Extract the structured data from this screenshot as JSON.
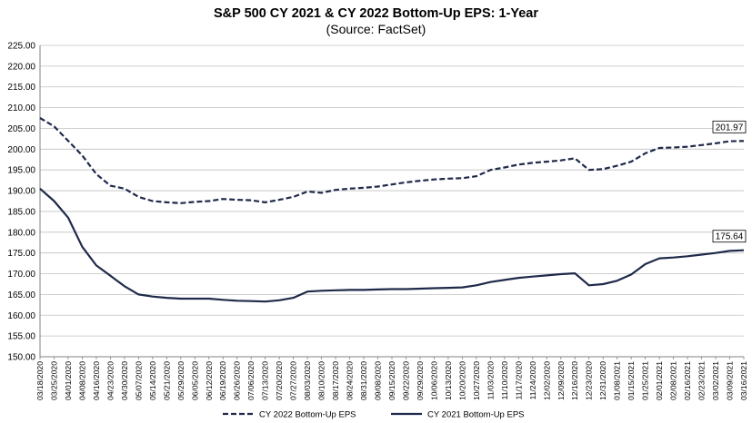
{
  "chart_data": {
    "type": "line",
    "title": "S&P 500 CY 2021 & CY 2022 Bottom-Up  EPS: 1-Year",
    "subtitle": "(Source: FactSet)",
    "ylim": [
      150,
      225
    ],
    "yticks": [
      "150.00",
      "155.00",
      "160.00",
      "165.00",
      "170.00",
      "175.00",
      "180.00",
      "185.00",
      "190.00",
      "195.00",
      "200.00",
      "205.00",
      "210.00",
      "215.00",
      "220.00",
      "225.00"
    ],
    "grid": "horizontal",
    "legend_position": "bottom",
    "x_labels": [
      "03/18/2020",
      "03/25/2020",
      "04/01/2020",
      "04/08/2020",
      "04/16/2020",
      "04/23/2020",
      "04/30/2020",
      "05/07/2020",
      "05/14/2020",
      "05/21/2020",
      "05/29/2020",
      "06/05/2020",
      "06/12/2020",
      "06/19/2020",
      "06/26/2020",
      "07/06/2020",
      "07/13/2020",
      "07/20/2020",
      "07/27/2020",
      "08/03/2020",
      "08/10/2020",
      "08/17/2020",
      "08/24/2020",
      "08/31/2020",
      "09/08/2020",
      "09/15/2020",
      "09/22/2020",
      "09/29/2020",
      "10/06/2020",
      "10/13/2020",
      "10/20/2020",
      "10/27/2020",
      "11/03/2020",
      "11/10/2020",
      "11/17/2020",
      "11/24/2020",
      "12/02/2020",
      "12/09/2020",
      "12/16/2020",
      "12/23/2020",
      "12/31/2020",
      "01/08/2021",
      "01/15/2021",
      "01/25/2021",
      "02/01/2021",
      "02/08/2021",
      "02/16/2021",
      "02/23/2021",
      "03/02/2021",
      "03/09/2021",
      "03/16/2021"
    ],
    "series": [
      {
        "name": "CY 2022 Bottom-Up EPS",
        "style": "dashed",
        "color": "#1f2a4a",
        "end_label": "201.97",
        "values": [
          207.5,
          205.5,
          202,
          198.5,
          194,
          191.2,
          190.5,
          188.5,
          187.5,
          187.2,
          187.0,
          187.3,
          187.5,
          188.0,
          187.8,
          187.7,
          187.2,
          187.8,
          188.5,
          189.8,
          189.5,
          190.2,
          190.5,
          190.7,
          191.0,
          191.5,
          192.0,
          192.4,
          192.7,
          192.9,
          193.0,
          193.5,
          195.0,
          195.6,
          196.3,
          196.7,
          197.0,
          197.3,
          197.8,
          195.0,
          195.2,
          196.0,
          197.0,
          199.0,
          200.3,
          200.4,
          200.6,
          201.0,
          201.4,
          201.9,
          201.97
        ]
      },
      {
        "name": "CY 2021 Bottom-Up EPS",
        "style": "solid",
        "color": "#1f2a4a",
        "end_label": "175.64",
        "values": [
          190.5,
          187.5,
          183.5,
          176.5,
          172,
          169.5,
          167,
          165,
          164.5,
          164.2,
          164.0,
          164.0,
          164.0,
          163.7,
          163.5,
          163.4,
          163.3,
          163.6,
          164.2,
          165.7,
          165.9,
          166.0,
          166.1,
          166.1,
          166.2,
          166.3,
          166.3,
          166.4,
          166.5,
          166.6,
          166.7,
          167.2,
          168.0,
          168.5,
          169.0,
          169.3,
          169.6,
          169.9,
          170.1,
          167.2,
          167.5,
          168.3,
          169.8,
          172.3,
          173.7,
          173.9,
          174.2,
          174.6,
          175.0,
          175.5,
          175.64
        ]
      }
    ]
  }
}
